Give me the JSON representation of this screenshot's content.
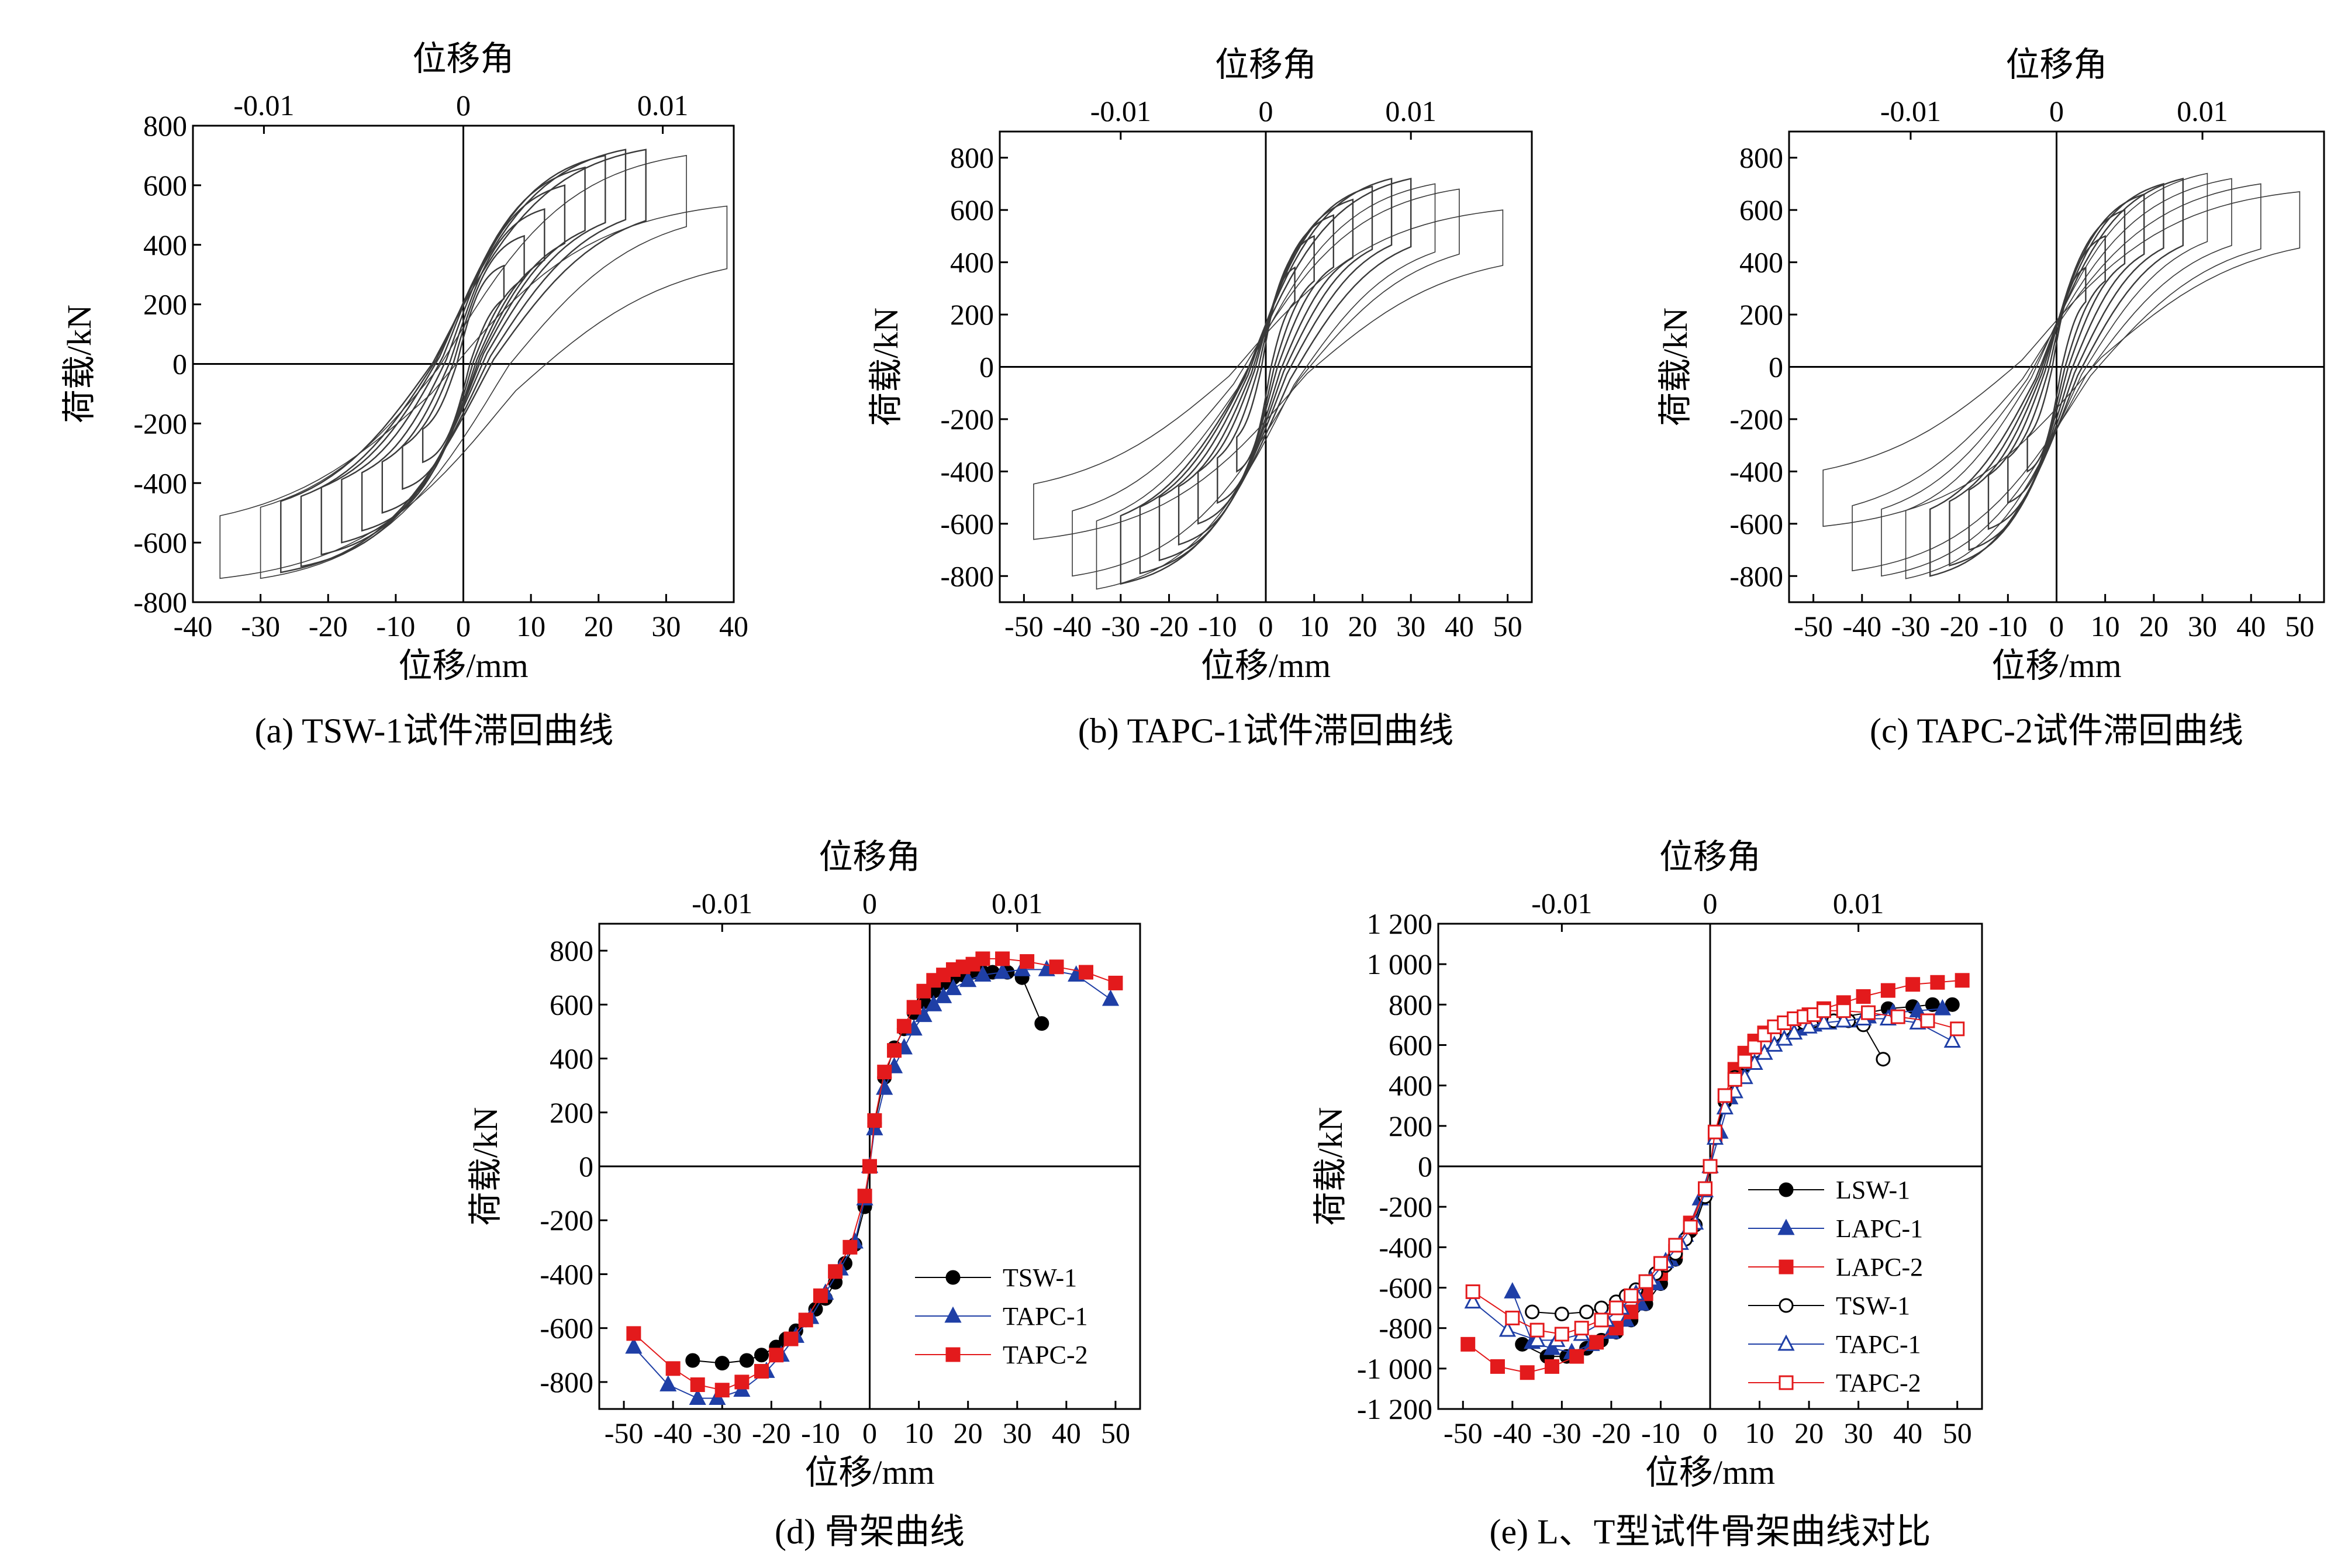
{
  "chart_data": [
    {
      "id": "a",
      "type": "line",
      "subtype": "hysteresis",
      "caption": "(a) TSW-1试件滞回曲线",
      "xlabel": "位移/mm",
      "ylabel": "荷载/kN",
      "top_xlabel": "位移角",
      "xlim": [
        -40,
        40
      ],
      "ylim": [
        -800,
        800
      ],
      "x_ticks": [
        -40,
        -30,
        -20,
        -10,
        0,
        10,
        20,
        30,
        40
      ],
      "y_ticks": [
        -800,
        -600,
        -400,
        -200,
        0,
        200,
        400,
        600,
        800
      ],
      "top_ticks": [
        {
          "label": "-0.01",
          "x": -29.5
        },
        {
          "label": "0",
          "x": 0
        },
        {
          "label": "0.01",
          "x": 29.5
        }
      ],
      "loops": [
        {
          "xmax": 6,
          "ymax": 330,
          "xmin": -6,
          "ymin": -330
        },
        {
          "xmax": 9,
          "ymax": 430,
          "xmin": -9,
          "ymin": -420
        },
        {
          "xmax": 12,
          "ymax": 520,
          "xmin": -12,
          "ymin": -500
        },
        {
          "xmax": 15,
          "ymax": 600,
          "xmin": -15,
          "ymin": -560
        },
        {
          "xmax": 18,
          "ymax": 660,
          "xmin": -18,
          "ymin": -600
        },
        {
          "xmax": 21,
          "ymax": 700,
          "xmin": -21,
          "ymin": -640
        },
        {
          "xmax": 24,
          "ymax": 720,
          "xmin": -24,
          "ymin": -680
        },
        {
          "xmax": 27,
          "ymax": 720,
          "xmin": -27,
          "ymin": -700
        },
        {
          "xmax": 33,
          "ymax": 700,
          "xmin": -30,
          "ymin": -720
        },
        {
          "xmax": 39,
          "ymax": 530,
          "xmin": -36,
          "ymin": -720
        }
      ]
    },
    {
      "id": "b",
      "type": "line",
      "subtype": "hysteresis",
      "caption": "(b) TAPC-1试件滞回曲线",
      "xlabel": "位移/mm",
      "ylabel": "荷载/kN",
      "top_xlabel": "位移角",
      "xlim": [
        -55,
        55
      ],
      "ylim": [
        -900,
        900
      ],
      "x_ticks": [
        -50,
        -40,
        -30,
        -20,
        -10,
        0,
        10,
        20,
        30,
        40,
        50
      ],
      "y_ticks": [
        -800,
        -600,
        -400,
        -200,
        0,
        200,
        400,
        600,
        800
      ],
      "top_ticks": [
        {
          "label": "-0.01",
          "x": -30
        },
        {
          "label": "0",
          "x": 0
        },
        {
          "label": "0.01",
          "x": 30
        }
      ],
      "loops": [
        {
          "xmax": 6,
          "ymax": 380,
          "xmin": -6,
          "ymin": -400
        },
        {
          "xmax": 10,
          "ymax": 500,
          "xmin": -10,
          "ymin": -520
        },
        {
          "xmax": 14,
          "ymax": 580,
          "xmin": -14,
          "ymin": -600
        },
        {
          "xmax": 18,
          "ymax": 640,
          "xmin": -18,
          "ymin": -680
        },
        {
          "xmax": 22,
          "ymax": 690,
          "xmin": -22,
          "ymin": -740
        },
        {
          "xmax": 26,
          "ymax": 720,
          "xmin": -26,
          "ymin": -790
        },
        {
          "xmax": 30,
          "ymax": 720,
          "xmin": -30,
          "ymin": -830
        },
        {
          "xmax": 35,
          "ymax": 700,
          "xmin": -35,
          "ymin": -850
        },
        {
          "xmax": 40,
          "ymax": 680,
          "xmin": -40,
          "ymin": -800
        },
        {
          "xmax": 49,
          "ymax": 600,
          "xmin": -48,
          "ymin": -660
        }
      ]
    },
    {
      "id": "c",
      "type": "line",
      "subtype": "hysteresis",
      "caption": "(c) TAPC-2试件滞回曲线",
      "xlabel": "位移/mm",
      "ylabel": "荷载/kN",
      "top_xlabel": "位移角",
      "xlim": [
        -55,
        55
      ],
      "ylim": [
        -900,
        900
      ],
      "x_ticks": [
        -50,
        -40,
        -30,
        -20,
        -10,
        0,
        10,
        20,
        30,
        40,
        50
      ],
      "y_ticks": [
        -800,
        -600,
        -400,
        -200,
        0,
        200,
        400,
        600,
        800
      ],
      "top_ticks": [
        {
          "label": "-0.01",
          "x": -30
        },
        {
          "label": "0",
          "x": 0
        },
        {
          "label": "0.01",
          "x": 30
        }
      ],
      "loops": [
        {
          "xmax": 6,
          "ymax": 380,
          "xmin": -6,
          "ymin": -400
        },
        {
          "xmax": 10,
          "ymax": 500,
          "xmin": -10,
          "ymin": -520
        },
        {
          "xmax": 14,
          "ymax": 600,
          "xmin": -14,
          "ymin": -620
        },
        {
          "xmax": 18,
          "ymax": 660,
          "xmin": -18,
          "ymin": -700
        },
        {
          "xmax": 22,
          "ymax": 700,
          "xmin": -22,
          "ymin": -760
        },
        {
          "xmax": 26,
          "ymax": 720,
          "xmin": -26,
          "ymin": -800
        },
        {
          "xmax": 31,
          "ymax": 740,
          "xmin": -31,
          "ymin": -810
        },
        {
          "xmax": 36,
          "ymax": 720,
          "xmin": -36,
          "ymin": -800
        },
        {
          "xmax": 42,
          "ymax": 700,
          "xmin": -42,
          "ymin": -780
        },
        {
          "xmax": 50,
          "ymax": 670,
          "xmin": -48,
          "ymin": -610
        }
      ]
    },
    {
      "id": "d",
      "type": "line",
      "subtype": "skeleton",
      "caption": "(d) 骨架曲线",
      "xlabel": "位移/mm",
      "ylabel": "荷载/kN",
      "top_xlabel": "位移角",
      "xlim": [
        -55,
        55
      ],
      "ylim": [
        -900,
        900
      ],
      "x_ticks": [
        -50,
        -40,
        -30,
        -20,
        -10,
        0,
        10,
        20,
        30,
        40,
        50
      ],
      "y_ticks": [
        -800,
        -600,
        -400,
        -200,
        0,
        200,
        400,
        600,
        800
      ],
      "top_ticks": [
        {
          "label": "-0.01",
          "x": -30
        },
        {
          "label": "0",
          "x": 0
        },
        {
          "label": "0.01",
          "x": 30
        }
      ],
      "legend_position": "bottom-right",
      "series": [
        {
          "name": "TSW-1",
          "color": "#000000",
          "marker": "circle",
          "filled": true,
          "x": [
            -36,
            -30,
            -25,
            -22,
            -19,
            -17,
            -15,
            -13,
            -11,
            -9,
            -7,
            -5,
            -3,
            -1,
            0,
            1,
            3,
            5,
            7,
            9,
            11,
            13,
            15,
            17,
            19,
            21,
            23,
            25,
            28,
            31,
            35
          ],
          "y": [
            -720,
            -730,
            -720,
            -700,
            -670,
            -640,
            -610,
            -570,
            -530,
            -490,
            -430,
            -360,
            -290,
            -150,
            0,
            160,
            330,
            440,
            510,
            570,
            610,
            650,
            680,
            700,
            710,
            720,
            720,
            720,
            720,
            700,
            530
          ]
        },
        {
          "name": "TAPC-1",
          "color": "#1f3fa6",
          "marker": "triangle",
          "filled": true,
          "x": [
            -48,
            -41,
            -35,
            -31,
            -26,
            -21,
            -18,
            -15,
            -12,
            -9,
            -6,
            -3,
            -1,
            0,
            1,
            3,
            5,
            7,
            9,
            11,
            13,
            15,
            17,
            20,
            23,
            27,
            31,
            36,
            42,
            49
          ],
          "y": [
            -670,
            -810,
            -860,
            -860,
            -830,
            -760,
            -700,
            -630,
            -560,
            -470,
            -380,
            -280,
            -120,
            0,
            140,
            290,
            370,
            440,
            510,
            560,
            600,
            630,
            660,
            690,
            710,
            720,
            730,
            730,
            710,
            620
          ]
        },
        {
          "name": "TAPC-2",
          "color": "#e31a1c",
          "marker": "square",
          "filled": true,
          "x": [
            -48,
            -40,
            -35,
            -30,
            -26,
            -22,
            -19,
            -16,
            -13,
            -10,
            -7,
            -4,
            -1,
            0,
            1,
            3,
            5,
            7,
            9,
            11,
            13,
            15,
            17,
            19,
            21,
            23,
            27,
            32,
            38,
            44,
            50
          ],
          "y": [
            -620,
            -750,
            -810,
            -830,
            -800,
            -760,
            -700,
            -640,
            -570,
            -480,
            -390,
            -300,
            -110,
            0,
            170,
            350,
            430,
            520,
            590,
            650,
            690,
            710,
            730,
            740,
            750,
            770,
            770,
            760,
            740,
            720,
            680
          ]
        }
      ]
    },
    {
      "id": "e",
      "type": "line",
      "subtype": "skeleton",
      "caption": "(e) L、T型试件骨架曲线对比",
      "xlabel": "位移/mm",
      "ylabel": "荷载/kN",
      "top_xlabel": "位移角",
      "xlim": [
        -55,
        55
      ],
      "ylim": [
        -1200,
        1200
      ],
      "x_ticks": [
        -50,
        -40,
        -30,
        -20,
        -10,
        0,
        10,
        20,
        30,
        40,
        50
      ],
      "y_ticks": [
        -1200,
        -1000,
        -800,
        -600,
        -400,
        -200,
        0,
        200,
        400,
        600,
        800,
        1000,
        1200
      ],
      "y_tick_labels": [
        "-1 200",
        "-1 000",
        "-800",
        "-600",
        "-400",
        "-200",
        "0",
        "200",
        "400",
        "600",
        "800",
        "1 000",
        "1 200"
      ],
      "top_ticks": [
        {
          "label": "-0.01",
          "x": -30
        },
        {
          "label": "0",
          "x": 0
        },
        {
          "label": "0.01",
          "x": 30
        }
      ],
      "legend_position": "bottom-right",
      "series": [
        {
          "name": "LSW-1",
          "color": "#000000",
          "marker": "circle",
          "filled": true,
          "x": [
            -38,
            -33,
            -29,
            -25,
            -22,
            -19,
            -16,
            -13,
            -10,
            -7,
            -4,
            -1,
            0,
            1,
            3,
            5,
            7,
            9,
            11,
            13,
            15,
            17,
            20,
            23,
            27,
            32,
            36,
            41,
            45,
            49
          ],
          "y": [
            -880,
            -940,
            -940,
            -900,
            -860,
            -820,
            -760,
            -680,
            -580,
            -460,
            -320,
            -130,
            0,
            140,
            320,
            430,
            500,
            560,
            600,
            640,
            660,
            680,
            700,
            720,
            740,
            760,
            780,
            790,
            800,
            800
          ]
        },
        {
          "name": "LAPC-1",
          "color": "#1f3fa6",
          "marker": "triangle",
          "filled": true,
          "x": [
            -40,
            -36,
            -32,
            -28,
            -24,
            -20,
            -17,
            -14,
            -11,
            -8,
            -5,
            -2,
            0,
            2,
            4,
            6,
            8,
            10,
            12,
            14,
            16,
            18,
            21,
            24,
            28,
            32,
            37,
            42,
            47
          ],
          "y": [
            -620,
            -870,
            -900,
            -920,
            -880,
            -820,
            -760,
            -680,
            -580,
            -460,
            -340,
            -160,
            0,
            170,
            340,
            450,
            520,
            570,
            610,
            640,
            660,
            680,
            700,
            710,
            720,
            740,
            760,
            770,
            780
          ]
        },
        {
          "name": "LAPC-2",
          "color": "#e31a1c",
          "marker": "square",
          "filled": true,
          "x": [
            -49,
            -43,
            -37,
            -32,
            -27,
            -23,
            -19,
            -16,
            -13,
            -10,
            -7,
            -4,
            -1,
            0,
            1,
            3,
            5,
            7,
            9,
            11,
            13,
            15,
            17,
            20,
            23,
            27,
            31,
            36,
            41,
            46,
            51
          ],
          "y": [
            -880,
            -990,
            -1020,
            -990,
            -940,
            -870,
            -800,
            -720,
            -630,
            -530,
            -420,
            -280,
            -120,
            0,
            150,
            350,
            480,
            560,
            620,
            660,
            690,
            710,
            730,
            750,
            780,
            810,
            840,
            870,
            900,
            910,
            920
          ]
        },
        {
          "name": "TSW-1",
          "color": "#000000",
          "marker": "circle",
          "filled": false,
          "x": [
            -36,
            -30,
            -25,
            -22,
            -19,
            -17,
            -15,
            -13,
            -11,
            -9,
            -7,
            -5,
            -3,
            -1,
            0,
            1,
            3,
            5,
            7,
            9,
            11,
            13,
            15,
            17,
            19,
            21,
            23,
            25,
            28,
            31,
            35
          ],
          "y": [
            -720,
            -730,
            -720,
            -700,
            -670,
            -640,
            -610,
            -570,
            -530,
            -490,
            -430,
            -360,
            -290,
            -150,
            0,
            160,
            330,
            440,
            510,
            570,
            610,
            650,
            680,
            700,
            710,
            720,
            720,
            720,
            720,
            700,
            530
          ]
        },
        {
          "name": "TAPC-1",
          "color": "#1f3fa6",
          "marker": "triangle",
          "filled": false,
          "x": [
            -48,
            -41,
            -35,
            -31,
            -26,
            -21,
            -18,
            -15,
            -12,
            -9,
            -6,
            -3,
            -1,
            0,
            1,
            3,
            5,
            7,
            9,
            11,
            13,
            15,
            17,
            20,
            23,
            27,
            31,
            36,
            42,
            49
          ],
          "y": [
            -670,
            -810,
            -860,
            -860,
            -830,
            -760,
            -700,
            -630,
            -560,
            -470,
            -380,
            -280,
            -120,
            0,
            140,
            290,
            370,
            440,
            510,
            560,
            600,
            630,
            660,
            690,
            710,
            720,
            730,
            730,
            710,
            620
          ]
        },
        {
          "name": "TAPC-2",
          "color": "#e31a1c",
          "marker": "square",
          "filled": false,
          "x": [
            -48,
            -40,
            -35,
            -30,
            -26,
            -22,
            -19,
            -16,
            -13,
            -10,
            -7,
            -4,
            -1,
            0,
            1,
            3,
            5,
            7,
            9,
            11,
            13,
            15,
            17,
            19,
            21,
            23,
            27,
            32,
            38,
            44,
            50
          ],
          "y": [
            -620,
            -750,
            -810,
            -830,
            -800,
            -760,
            -700,
            -640,
            -570,
            -480,
            -390,
            -300,
            -110,
            0,
            170,
            350,
            430,
            520,
            590,
            650,
            690,
            710,
            730,
            740,
            750,
            770,
            770,
            760,
            740,
            720,
            680
          ]
        }
      ]
    }
  ]
}
